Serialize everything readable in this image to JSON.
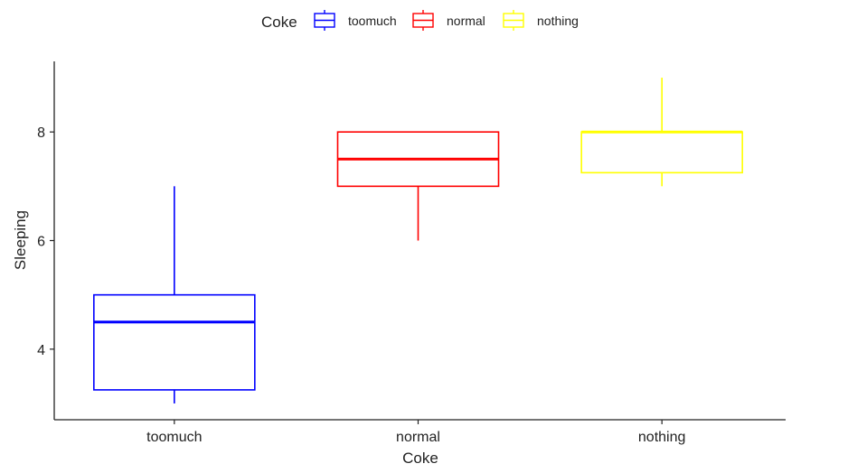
{
  "chart_data": {
    "type": "boxplot",
    "xlabel": "Coke",
    "ylabel": "Sleeping",
    "categories": [
      "toomuch",
      "normal",
      "nothing"
    ],
    "ylim": [
      2.7,
      9.3
    ],
    "yticks": [
      4,
      6,
      8
    ],
    "grid": false,
    "legend": {
      "title": "Coke",
      "placement": "top",
      "entries": [
        "toomuch",
        "normal",
        "nothing"
      ]
    },
    "colors": {
      "toomuch": "#0000ff",
      "normal": "#ff0000",
      "nothing": "#ffff00"
    },
    "series": [
      {
        "category": "toomuch",
        "whisker_low": 3,
        "q1": 3.25,
        "median": 4.5,
        "q3": 5,
        "whisker_high": 7
      },
      {
        "category": "normal",
        "whisker_low": 6,
        "q1": 7,
        "median": 7.5,
        "q3": 8,
        "whisker_high": 8
      },
      {
        "category": "nothing",
        "whisker_low": 7,
        "q1": 7.25,
        "median": 8,
        "q3": 8,
        "whisker_high": 9
      }
    ]
  }
}
